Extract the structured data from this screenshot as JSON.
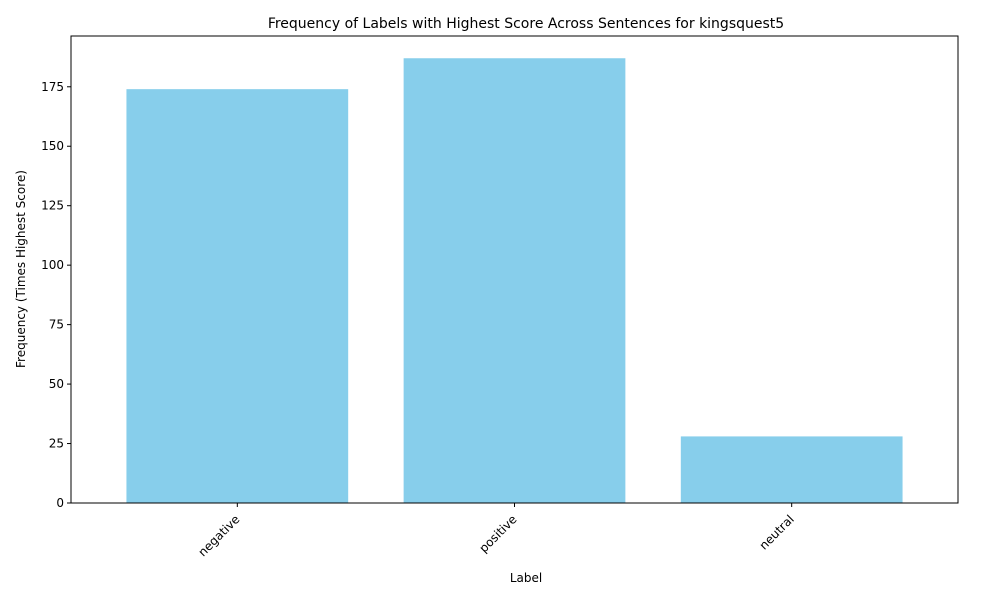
{
  "chart_data": {
    "type": "bar",
    "title": "Frequency of Labels with Highest Score Across Sentences for kingsquest5",
    "xlabel": "Label",
    "ylabel": "Frequency (Times Highest Score)",
    "categories": [
      "negative",
      "positive",
      "neutral"
    ],
    "values": [
      174,
      187,
      28
    ],
    "ylim": [
      0,
      196.35
    ],
    "yticks": [
      0,
      25,
      50,
      75,
      100,
      125,
      150,
      175
    ],
    "bar_color": "#87ceeb",
    "grid": false,
    "legend": "none"
  }
}
